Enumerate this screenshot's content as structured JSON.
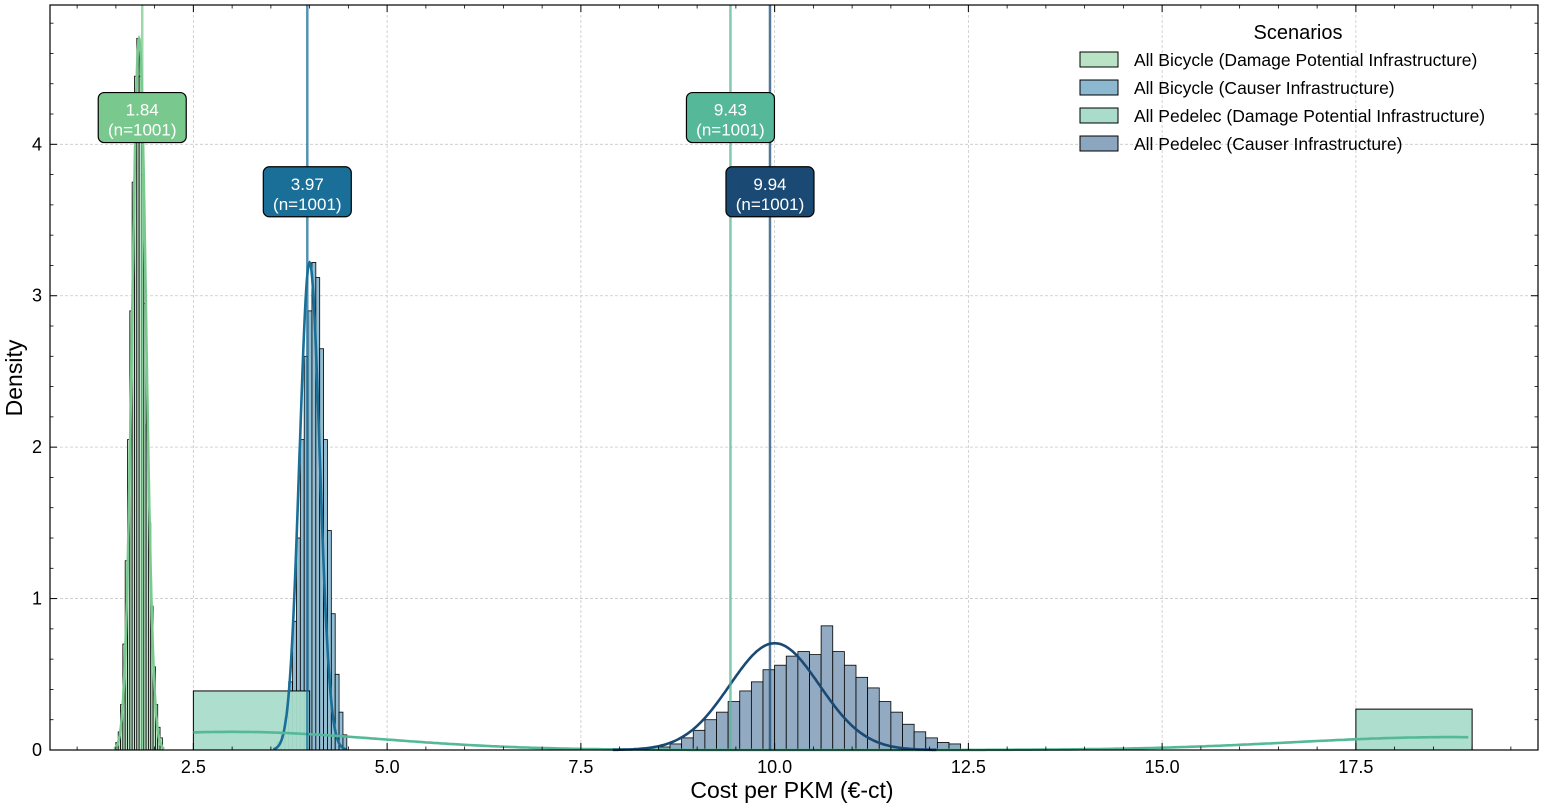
{
  "chart_data": {
    "type": "histogram",
    "xlabel": "Cost per PKM (€-ct)",
    "ylabel": "Density",
    "xlim": [
      0.65,
      19.85
    ],
    "ylim": [
      0,
      4.92
    ],
    "x_ticks": [
      2.5,
      5.0,
      7.5,
      10.0,
      12.5,
      15.0,
      17.5
    ],
    "x_tick_labels": [
      "2.5",
      "5.0",
      "7.5",
      "10.0",
      "12.5",
      "15.0",
      "17.5"
    ],
    "y_ticks": [
      0,
      1,
      2,
      3,
      4
    ],
    "y_tick_labels": [
      "0",
      "1",
      "2",
      "3",
      "4"
    ],
    "grid": true,
    "legend": {
      "title": "Scenarios",
      "placement": "top-right"
    },
    "series": [
      {
        "name": "All Bicycle (Damage Potential Infrastructure)",
        "color": "#79c98f",
        "fill": "#b9e3c4",
        "bin_start": 1.5,
        "bin_width": 0.03,
        "densities": [
          0.05,
          0.12,
          0.3,
          0.7,
          1.25,
          2.05,
          2.9,
          3.75,
          4.45,
          4.7,
          4.45,
          3.8,
          2.95,
          2.15,
          1.5,
          0.95,
          0.55,
          0.3,
          0.15,
          0.08
        ],
        "kde_mean": 1.8,
        "kde_sd": 0.09,
        "mean": 1.84,
        "mean_label": "1.84",
        "count_label": "(n=1001)"
      },
      {
        "name": "All Bicycle (Causer Infrastructure)",
        "color": "#1a6f98",
        "fill": "#8cb9d0",
        "bin_start": 3.58,
        "bin_width": 0.05,
        "densities": [
          0.05,
          0.1,
          0.22,
          0.45,
          0.85,
          1.4,
          2.05,
          2.6,
          2.9,
          3.22,
          3.12,
          2.65,
          2.05,
          1.45,
          0.9,
          0.5,
          0.25,
          0.1
        ],
        "kde_mean": 4.0,
        "kde_sd": 0.13,
        "mean": 3.97,
        "mean_label": "3.97",
        "count_label": "(n=1001)"
      },
      {
        "name": "All Pedelec (Damage Potential Infrastructure)",
        "color": "#55b898",
        "fill": "#a9dccb",
        "bars": [
          {
            "x0": 2.5,
            "x1": 4.0,
            "density": 0.39
          },
          {
            "x0": 17.5,
            "x1": 19.0,
            "density": 0.27
          }
        ],
        "mean": 9.43,
        "mean_label": "9.43",
        "count_label": "(n=1001)"
      },
      {
        "name": "All Pedelec (Causer Infrastructure)",
        "color": "#1a4a73",
        "fill": "#8da6bf",
        "bin_start": 8.5,
        "bin_width": 0.15,
        "densities": [
          0.02,
          0.04,
          0.08,
          0.13,
          0.2,
          0.25,
          0.32,
          0.39,
          0.45,
          0.53,
          0.56,
          0.62,
          0.65,
          0.63,
          0.82,
          0.65,
          0.56,
          0.48,
          0.41,
          0.32,
          0.25,
          0.17,
          0.12,
          0.08,
          0.05,
          0.04
        ],
        "kde_mean": 10.0,
        "kde_sd": 0.58,
        "mean": 9.94,
        "mean_label": "9.94",
        "count_label": "(n=1001)"
      }
    ]
  }
}
